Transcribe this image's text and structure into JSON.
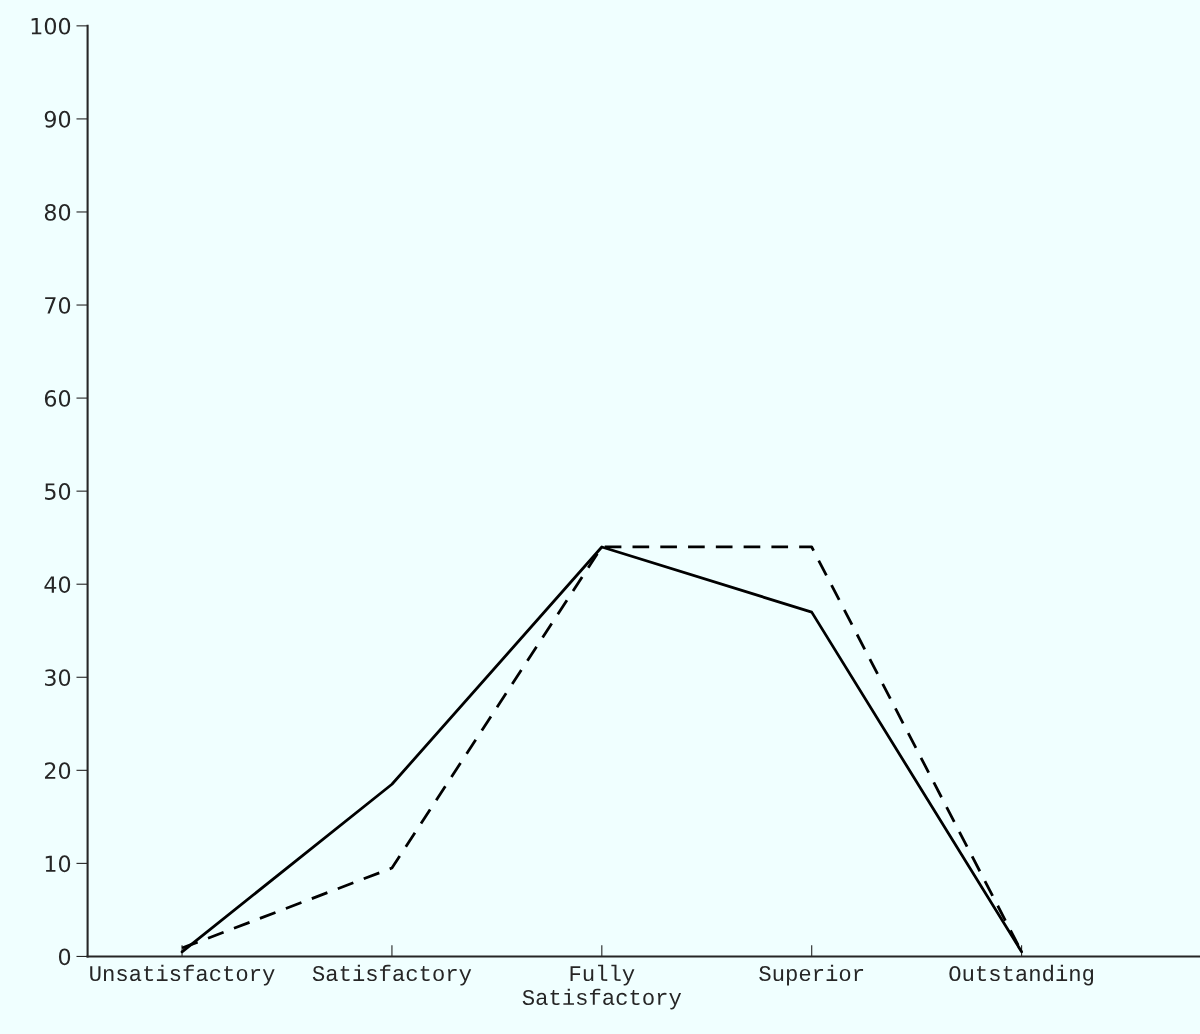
{
  "chart_data": {
    "type": "line",
    "categories": [
      "Unsatisfactory",
      "Satisfactory",
      "Fully\nSatisfactory",
      "Superior",
      "Outstanding"
    ],
    "series": [
      {
        "color": "#000000",
        "line_style": "solid",
        "values": [
          0.5,
          18.5,
          44,
          37,
          0.5
        ]
      },
      {
        "color": "#000000",
        "line_style": "dashed",
        "values": [
          0.9,
          9.5,
          44,
          44,
          0.5
        ]
      }
    ],
    "ylim": [
      0,
      100
    ],
    "yticks": [
      0,
      10,
      20,
      30,
      40,
      50,
      60,
      70,
      80,
      90,
      100
    ],
    "grid": false,
    "marker": "none"
  }
}
